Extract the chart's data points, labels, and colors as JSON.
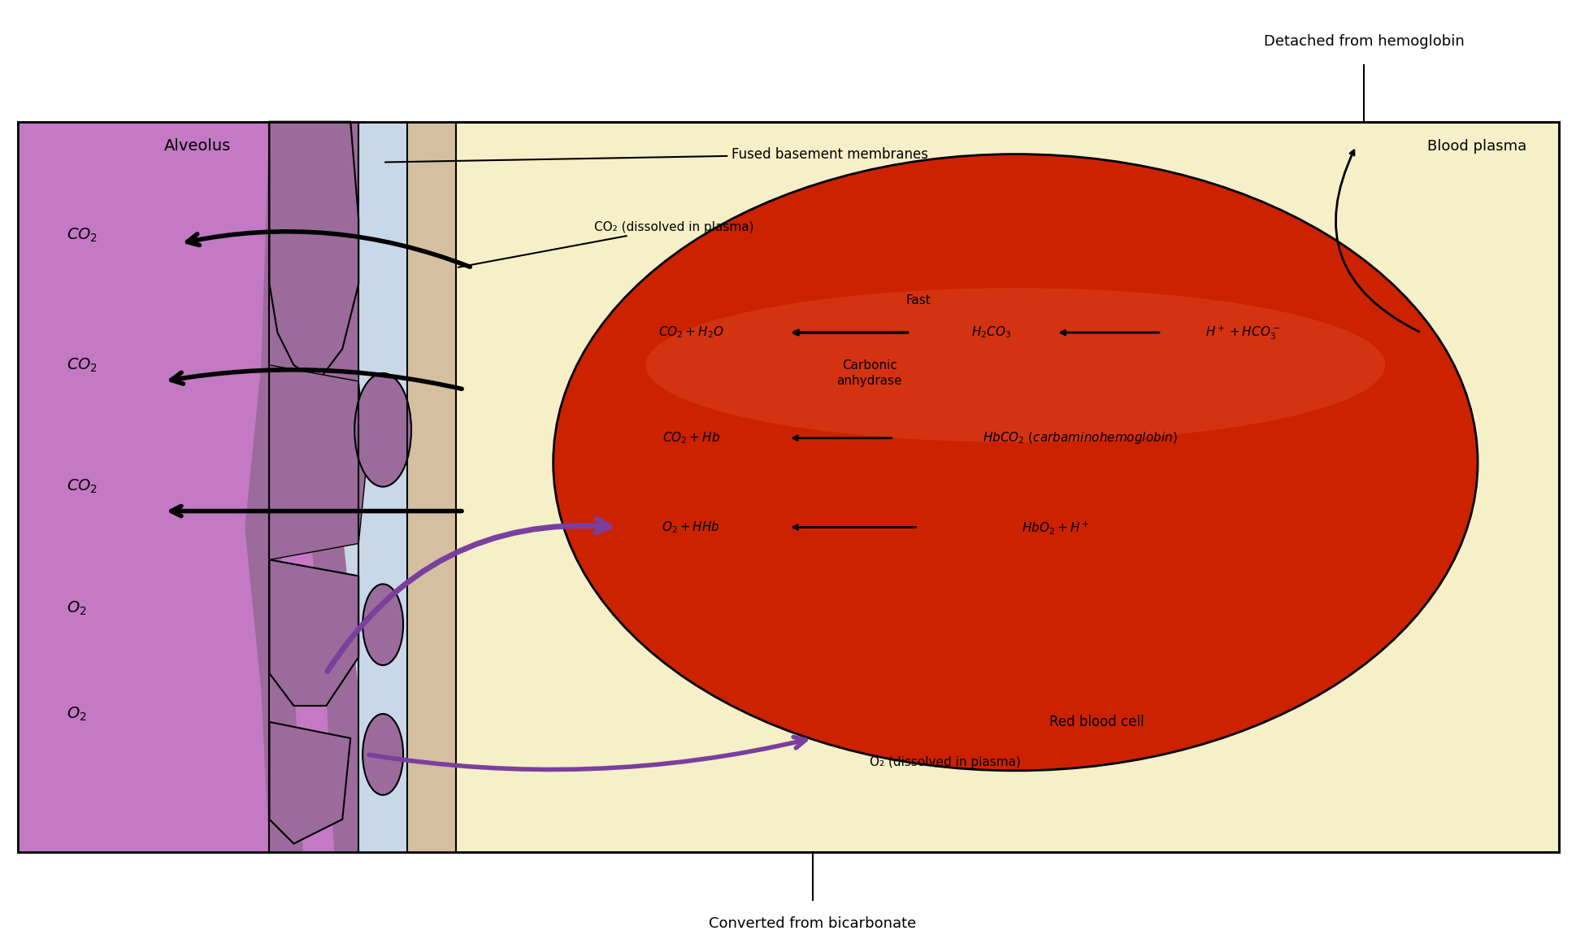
{
  "bg_color": "#FFFFF0",
  "alveolus_color": "#C479C4",
  "blood_plasma_color": "#F5F0C8",
  "rbc_color_outer": "#CC2200",
  "rbc_color_inner": "#BB3311",
  "rbc_highlight": "#DD4422",
  "wall_outer_color": "#9B6B9B",
  "wall_inner_color": "#C8D8E8",
  "wall_mid_color": "#D4C0A0",
  "title_above": "Detached from hemoglobin",
  "title_below": "Converted from bicarbonate",
  "label_alveolus": "Alveolus",
  "label_blood_plasma": "Blood plasma",
  "label_rbc": "Red blood cell",
  "label_fused": "Fused basement membranes",
  "label_co2_plasma": "CO₂ (dissolved in plasma)",
  "label_o2_plasma": "O₂ (dissolved in plasma)",
  "text_fast": "Fast",
  "text_carbonic": "Carbonic\nanhydrase",
  "eq1_left": "CO₂ + H₂O",
  "eq1_mid": "H₂CO₃",
  "eq1_right": "H⁺ + HCO₃⁻",
  "eq2_left": "CO₂ + Hb",
  "eq2_right": "HbCO₂ (carbaminohemoglobin)",
  "eq3_left": "O₂ + HHb",
  "eq3_right": "HbO₂ + H⁺",
  "co2_labels": [
    "CO₂",
    "CO₂",
    "CO₂"
  ],
  "o2_labels": [
    "O₂",
    "O₂"
  ],
  "arrow_color_black": "#000000",
  "arrow_color_purple": "#7B3F9E",
  "figure_width": 19.4,
  "figure_height": 11.5,
  "border_color": "#000000"
}
